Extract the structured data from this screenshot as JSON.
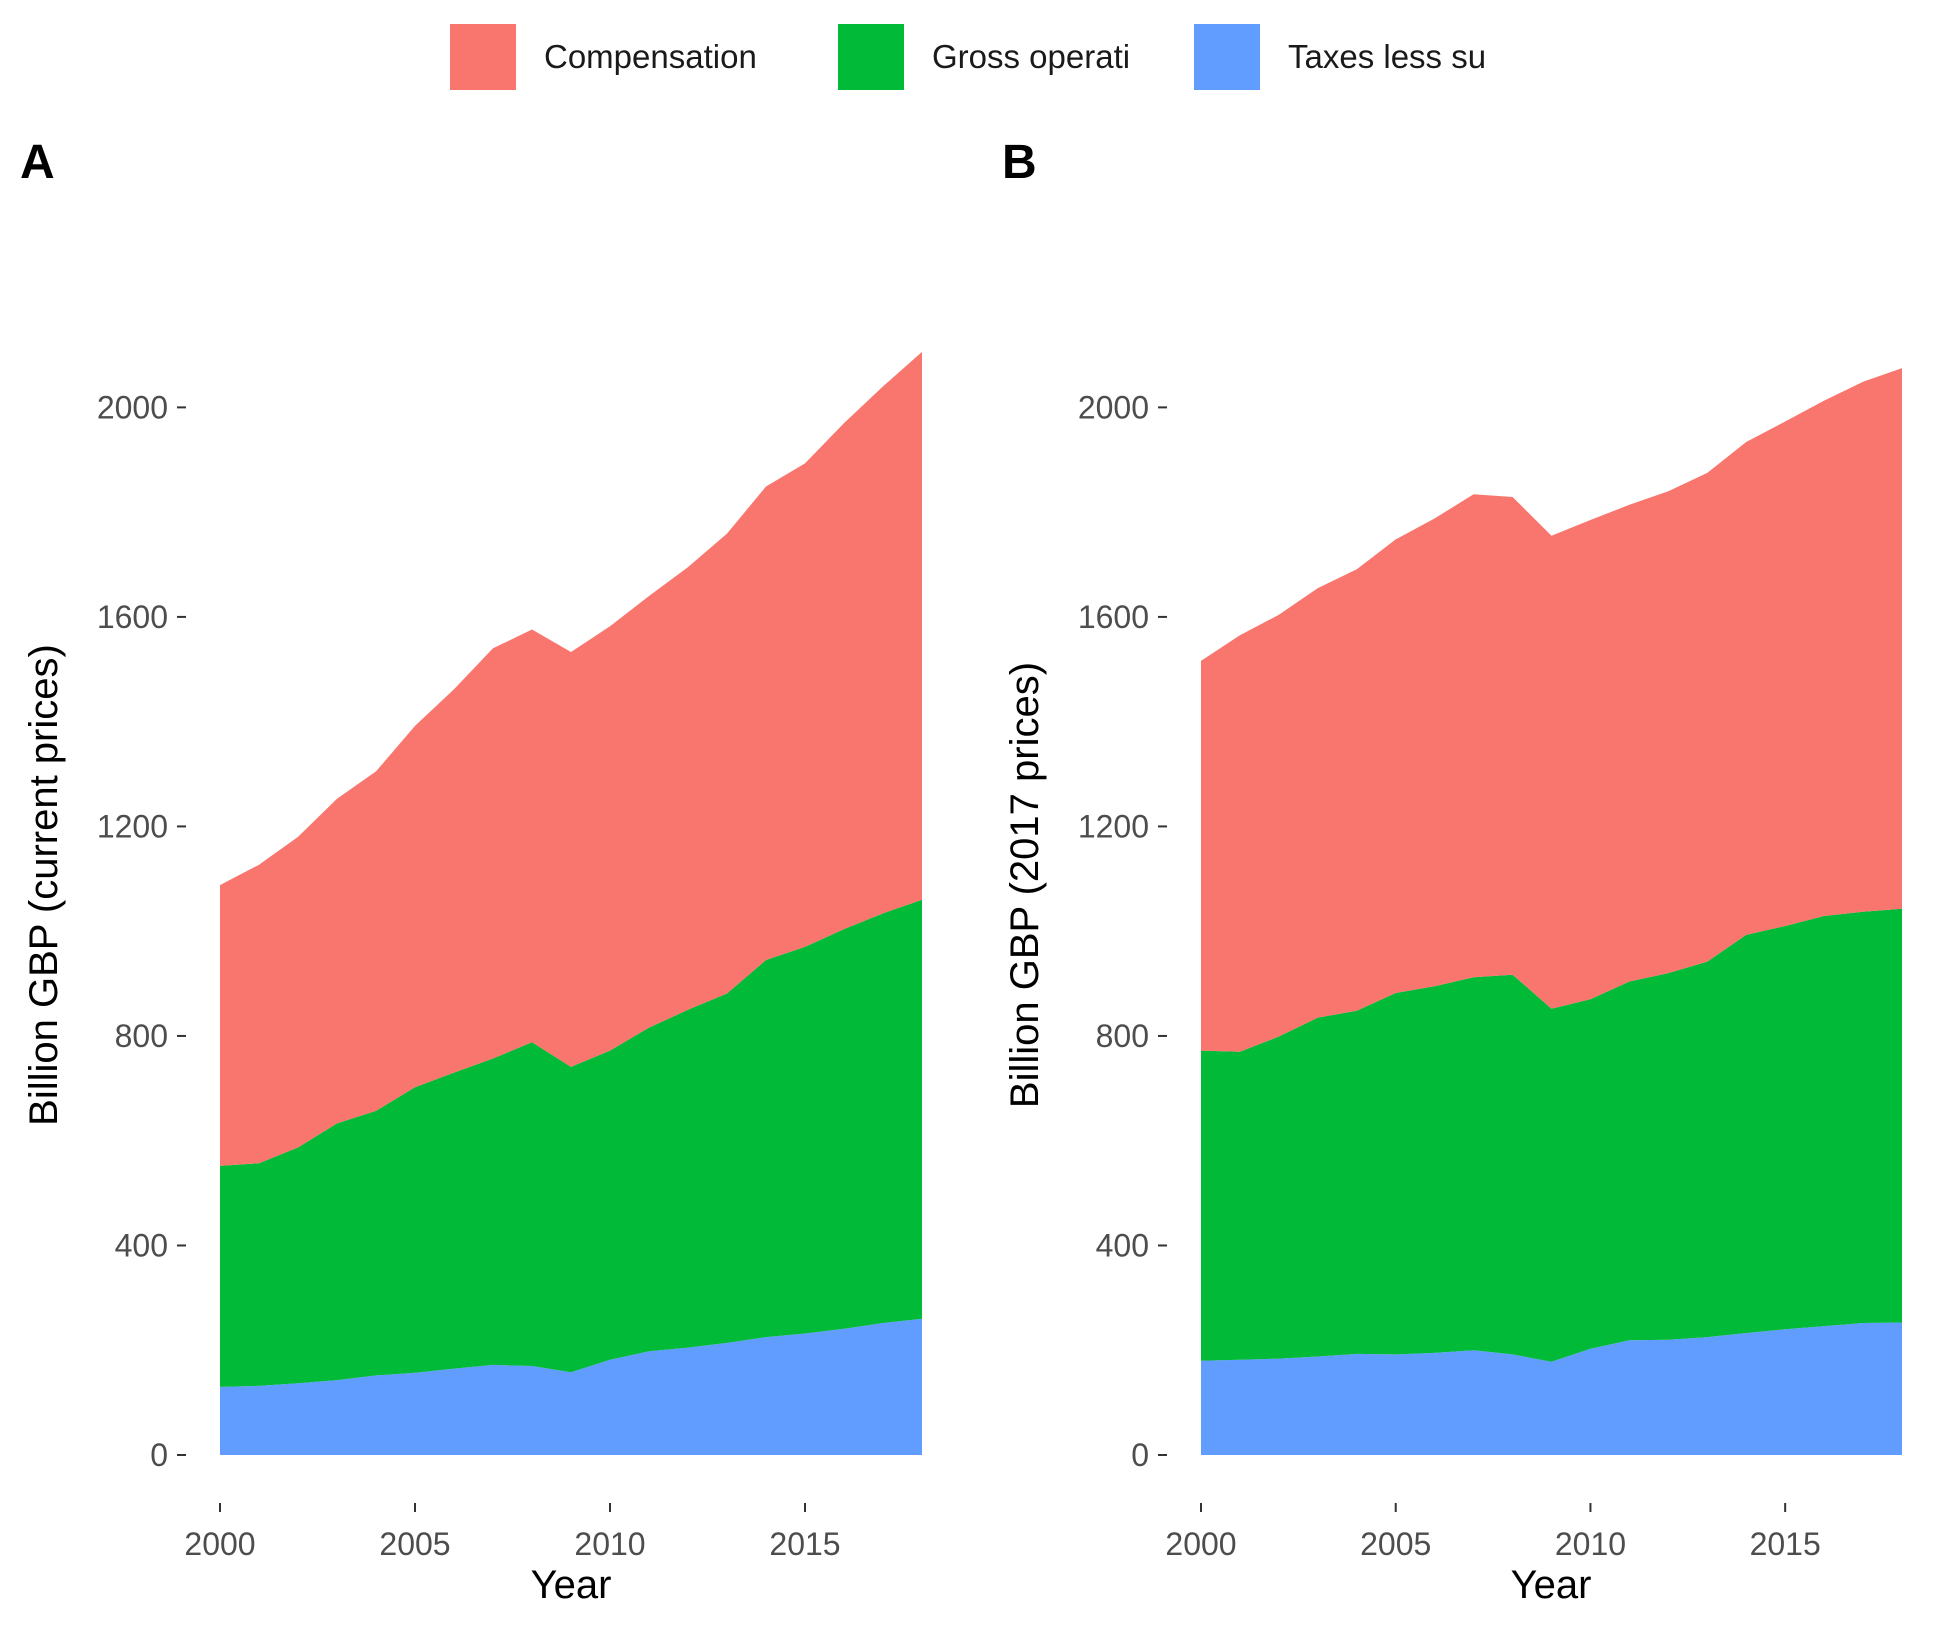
{
  "legend": {
    "items": [
      {
        "label": "Compensation",
        "color": "#F8766D"
      },
      {
        "label": "Gross operati",
        "color": "#00BA38"
      },
      {
        "label": "Taxes less su",
        "color": "#619CFF"
      }
    ]
  },
  "panels": [
    {
      "tag": "A",
      "ylabel": "Billion GBP (current prices)",
      "xlabel": "Year"
    },
    {
      "tag": "B",
      "ylabel": "Billion GBP (2017 prices)",
      "xlabel": "Year"
    }
  ],
  "chart_data": [
    {
      "type": "area",
      "stacked": true,
      "title": "",
      "panel": "A",
      "xlabel": "Year",
      "ylabel": "Billion GBP (current prices)",
      "xlim": [
        2000,
        2018
      ],
      "ylim": [
        0,
        2100
      ],
      "x_ticks": [
        2000,
        2005,
        2010,
        2015
      ],
      "y_ticks": [
        0,
        400,
        800,
        1200,
        1600,
        2000
      ],
      "grid": false,
      "legend_position": "top",
      "x": [
        2000,
        2001,
        2002,
        2003,
        2004,
        2005,
        2006,
        2007,
        2008,
        2009,
        2010,
        2011,
        2012,
        2013,
        2014,
        2015,
        2016,
        2017,
        2018
      ],
      "series": [
        {
          "name": "Taxes less su",
          "color": "#619CFF",
          "values": [
            130,
            132,
            137,
            143,
            152,
            157,
            165,
            172,
            170,
            158,
            182,
            198,
            205,
            214,
            225,
            232,
            241,
            252,
            260
          ]
        },
        {
          "name": "Gross operati",
          "color": "#00BA38",
          "values": [
            422,
            425,
            450,
            490,
            505,
            545,
            565,
            585,
            618,
            583,
            590,
            618,
            645,
            667,
            720,
            738,
            763,
            782,
            800
          ]
        },
        {
          "name": "Compensation",
          "color": "#F8766D",
          "values": [
            536,
            570,
            593,
            620,
            648,
            690,
            732,
            783,
            788,
            792,
            810,
            824,
            845,
            878,
            904,
            923,
            966,
            1006,
            1046
          ]
        }
      ]
    },
    {
      "type": "area",
      "stacked": true,
      "title": "",
      "panel": "B",
      "xlabel": "Year",
      "ylabel": "Billion GBP (2017 prices)",
      "xlim": [
        2000,
        2018
      ],
      "ylim": [
        0,
        2100
      ],
      "x_ticks": [
        2000,
        2005,
        2010,
        2015
      ],
      "y_ticks": [
        0,
        400,
        800,
        1200,
        1600,
        2000
      ],
      "grid": false,
      "legend_position": "top",
      "x": [
        2000,
        2001,
        2002,
        2003,
        2004,
        2005,
        2006,
        2007,
        2008,
        2009,
        2010,
        2011,
        2012,
        2013,
        2014,
        2015,
        2016,
        2017,
        2018
      ],
      "series": [
        {
          "name": "Taxes less su",
          "color": "#619CFF",
          "values": [
            180,
            182,
            184,
            188,
            193,
            192,
            195,
            200,
            192,
            178,
            203,
            219,
            220,
            225,
            233,
            240,
            246,
            252,
            253
          ]
        },
        {
          "name": "Gross operati",
          "color": "#00BA38",
          "values": [
            592,
            588,
            615,
            647,
            655,
            690,
            700,
            712,
            725,
            674,
            667,
            685,
            700,
            717,
            760,
            770,
            783,
            785,
            790
          ]
        },
        {
          "name": "Compensation",
          "color": "#F8766D",
          "values": [
            744,
            795,
            805,
            820,
            843,
            866,
            893,
            922,
            912,
            903,
            915,
            910,
            920,
            933,
            941,
            963,
            984,
            1012,
            1032
          ]
        }
      ]
    }
  ]
}
